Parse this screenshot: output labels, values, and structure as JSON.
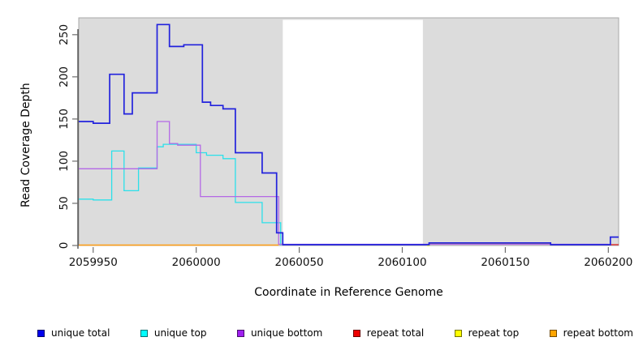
{
  "chart_data": {
    "type": "line",
    "step": true,
    "title": "",
    "xlabel": "Coordinate in Reference Genome",
    "ylabel": "Read Coverage Depth",
    "xlim": [
      2059943,
      2060205
    ],
    "ylim": [
      0,
      270
    ],
    "xticks": [
      2059950,
      2060000,
      2060050,
      2060100,
      2060150,
      2060200
    ],
    "yticks": [
      0,
      50,
      100,
      150,
      200,
      250
    ],
    "grid": false,
    "plot_bg_color": "#dcdcdc",
    "plot_border_color": "#a8a8a8",
    "axis_color": "#333333",
    "tick_color": "#6e6e6e",
    "highlight_region": {
      "x0": 2060042,
      "x1": 2060110,
      "color": "#ffffff"
    },
    "legend_position": "bottom",
    "series": [
      {
        "name": "unique total",
        "legend_color": "#0000ee",
        "color": "#2222dd",
        "width": 1.7,
        "z": 6,
        "paths": [
          [
            [
              2059943,
              147
            ],
            [
              2059950,
              145
            ],
            [
              2059958,
              203
            ],
            [
              2059965,
              156
            ],
            [
              2059969,
              181
            ],
            [
              2059981,
              262
            ],
            [
              2059987,
              236
            ],
            [
              2059994,
              238
            ],
            [
              2060003,
              170
            ],
            [
              2060007,
              166
            ],
            [
              2060013,
              162
            ],
            [
              2060019,
              110
            ],
            [
              2060032,
              86
            ],
            [
              2060039,
              15
            ],
            [
              2060042,
              1
            ],
            [
              2060113,
              3
            ],
            [
              2060172,
              1
            ],
            [
              2060201,
              10
            ],
            [
              2060205,
              10
            ]
          ]
        ]
      },
      {
        "name": "unique top",
        "legend_color": "#00ffff",
        "color": "#2be0ea",
        "width": 1.3,
        "z": 1,
        "paths": [
          [
            [
              2059943,
              55
            ],
            [
              2059950,
              54
            ],
            [
              2059959,
              112
            ],
            [
              2059965,
              65
            ],
            [
              2059972,
              92
            ],
            [
              2059981,
              117
            ],
            [
              2059984,
              120
            ],
            [
              2060000,
              110
            ],
            [
              2060005,
              107
            ],
            [
              2060013,
              103
            ],
            [
              2060019,
              51
            ],
            [
              2060032,
              27
            ],
            [
              2060041,
              0
            ]
          ],
          [
            [
              2060112,
              0
            ],
            [
              2060113,
              2.2
            ],
            [
              2060172,
              0
            ]
          ]
        ]
      },
      {
        "name": "unique bottom",
        "legend_color": "#a020f0",
        "color": "#b468e6",
        "width": 1.3,
        "z": 3,
        "paths": [
          [
            [
              2059943,
              91
            ],
            [
              2059981,
              147
            ],
            [
              2059987,
              121
            ],
            [
              2059991,
              119
            ],
            [
              2060002,
              58
            ],
            [
              2060040,
              1.4
            ],
            [
              2060200,
              1.4
            ]
          ]
        ]
      },
      {
        "name": "repeat total",
        "legend_color": "#ee0000",
        "color": "#e32222",
        "width": 1.3,
        "z": 4,
        "paths": [
          [
            [
              2060200,
              1
            ],
            [
              2060205,
              1
            ]
          ]
        ]
      },
      {
        "name": "repeat top",
        "legend_color": "#ffff00",
        "color": "#f5f500",
        "width": 1.2,
        "z": 2,
        "paths": [
          [
            [
              2060112,
              0
            ],
            [
              2060113,
              1.8
            ],
            [
              2060172,
              0
            ]
          ]
        ]
      },
      {
        "name": "repeat bottom",
        "legend_color": "#ffa500",
        "color": "#ff9e14",
        "width": 1.6,
        "z": 5,
        "paths": [
          [
            [
              2059943,
              0.5
            ],
            [
              2060040,
              0.5
            ]
          ]
        ]
      }
    ]
  }
}
